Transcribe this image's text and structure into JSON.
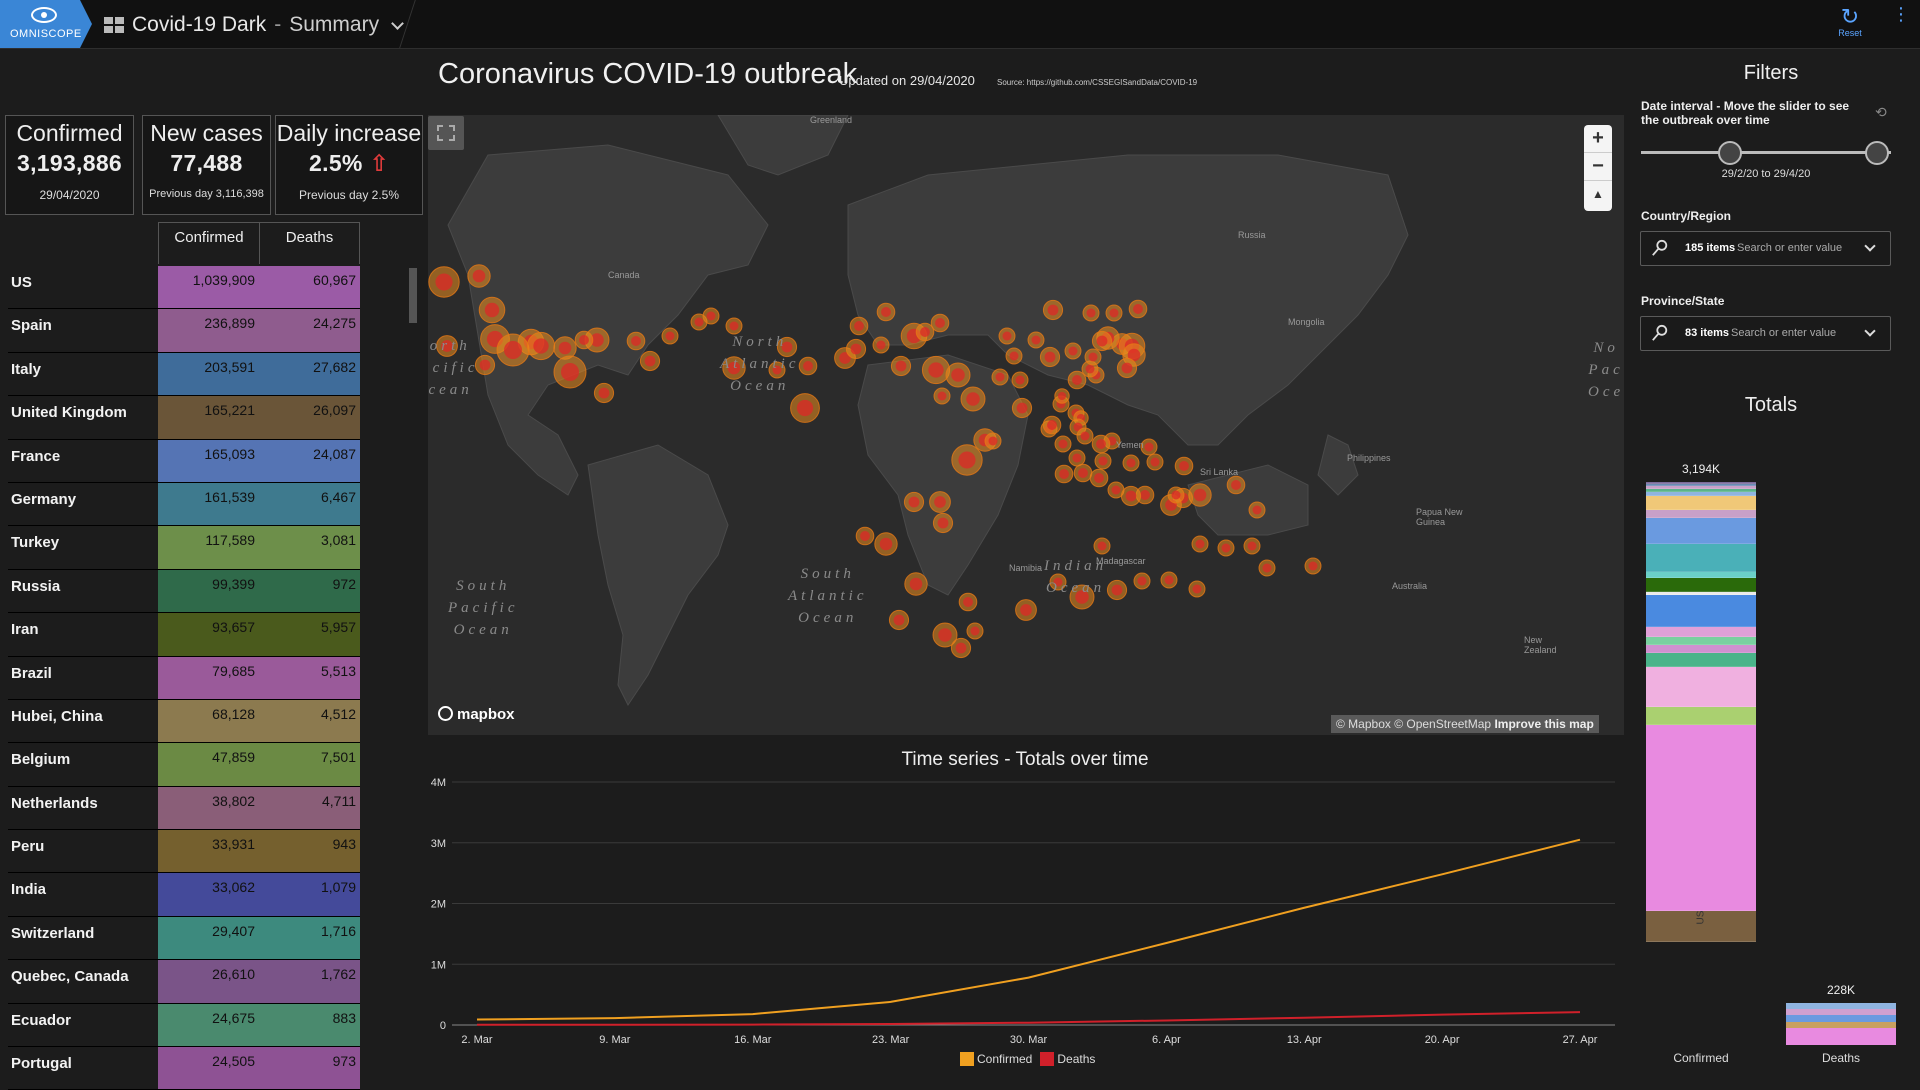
{
  "app": {
    "logo_text": "OMNISCOPE",
    "project": "Covid-19 Dark",
    "separator": "-",
    "page": "Summary",
    "reset_label": "Reset"
  },
  "dashboard": {
    "title": "Coronavirus COVID-19 outbreak",
    "updated": "Updated on 29/04/2020",
    "source": "Source: https://github.com/CSSEGISandData/COVID-19"
  },
  "kpis": {
    "confirmed": {
      "title": "Confirmed",
      "value": "3,193,886",
      "sub": "29/04/2020"
    },
    "new_cases": {
      "title": "New cases",
      "value": "77,488",
      "sub": "Previous day 3,116,398"
    },
    "daily_increase": {
      "title": "Daily increase",
      "value": "2.5%",
      "arrow": "⇧",
      "sub": "Previous day 2.5%"
    }
  },
  "table": {
    "headers": {
      "confirmed": "Confirmed",
      "deaths": "Deaths"
    },
    "rows": [
      {
        "country": "US",
        "confirmed": "1,039,909",
        "deaths": "60,967",
        "color": "#9b5ba6"
      },
      {
        "country": "Spain",
        "confirmed": "236,899",
        "deaths": "24,275",
        "color": "#8f5c8e"
      },
      {
        "country": "Italy",
        "confirmed": "203,591",
        "deaths": "27,682",
        "color": "#3f6c9a"
      },
      {
        "country": "United Kingdom",
        "confirmed": "165,221",
        "deaths": "26,097",
        "color": "#6a5538"
      },
      {
        "country": "France",
        "confirmed": "165,093",
        "deaths": "24,087",
        "color": "#5574b4"
      },
      {
        "country": "Germany",
        "confirmed": "161,539",
        "deaths": "6,467",
        "color": "#3e7a8e"
      },
      {
        "country": "Turkey",
        "confirmed": "117,589",
        "deaths": "3,081",
        "color": "#6d8f4a"
      },
      {
        "country": "Russia",
        "confirmed": "99,399",
        "deaths": "972",
        "color": "#2f6a4a"
      },
      {
        "country": "Iran",
        "confirmed": "93,657",
        "deaths": "5,957",
        "color": "#4a5a1c"
      },
      {
        "country": "Brazil",
        "confirmed": "79,685",
        "deaths": "5,513",
        "color": "#9a5a9a"
      },
      {
        "country": "Hubei, China",
        "confirmed": "68,128",
        "deaths": "4,512",
        "color": "#8c7a4f"
      },
      {
        "country": "Belgium",
        "confirmed": "47,859",
        "deaths": "7,501",
        "color": "#6b8a44"
      },
      {
        "country": "Netherlands",
        "confirmed": "38,802",
        "deaths": "4,711",
        "color": "#8a5e78"
      },
      {
        "country": "Peru",
        "confirmed": "33,931",
        "deaths": "943",
        "color": "#75602e"
      },
      {
        "country": "India",
        "confirmed": "33,062",
        "deaths": "1,079",
        "color": "#444a9a"
      },
      {
        "country": "Switzerland",
        "confirmed": "29,407",
        "deaths": "1,716",
        "color": "#3d8a7e"
      },
      {
        "country": "Quebec, Canada",
        "confirmed": "26,610",
        "deaths": "1,762",
        "color": "#7a5488"
      },
      {
        "country": "Ecuador",
        "confirmed": "24,675",
        "deaths": "883",
        "color": "#4a8a6e"
      },
      {
        "country": "Portugal",
        "confirmed": "24,505",
        "deaths": "973",
        "color": "#8e5294"
      }
    ]
  },
  "map": {
    "oceans": {
      "north_pacific": "North\nPacific\nOcean",
      "north_atlantic": "North\nAtlantic\nOcean",
      "south_pacific": "South\nPacific\nOcean",
      "south_atlantic": "South\nAtlantic\nOcean",
      "indian": "Indian\nOcean",
      "north_pacific_right": "No\nPac\nOce"
    },
    "places": [
      "Greenland",
      "Canada",
      "Russia",
      "Mongolia",
      "Australia",
      "Papua New Guinea",
      "New Zealand",
      "Sri Lanka",
      "Yemen",
      "Namibia",
      "Madagascar",
      "Philippines"
    ],
    "zoom_in": "+",
    "zoom_out": "−",
    "reset_north": "▲",
    "mapbox_text": "mapbox",
    "attribution": "© Mapbox © OpenStreetMap",
    "improve": "Improve this map"
  },
  "chart_data": {
    "type": "line",
    "title": "Time series - Totals over time",
    "x": [
      "2. Mar",
      "9. Mar",
      "16. Mar",
      "23. Mar",
      "30. Mar",
      "6. Apr",
      "13. Apr",
      "20. Apr",
      "27. Apr"
    ],
    "series": [
      {
        "name": "Confirmed",
        "color": "#f0a020",
        "values": [
          90000,
          114000,
          180000,
          380000,
          780000,
          1350000,
          1930000,
          2480000,
          3050000
        ]
      },
      {
        "name": "Deaths",
        "color": "#d0202a",
        "values": [
          3100,
          4000,
          7100,
          16500,
          38000,
          75000,
          120000,
          170000,
          212000
        ]
      }
    ],
    "yticks": [
      "0",
      "1M",
      "2M",
      "3M",
      "4M"
    ],
    "ylim": [
      0,
      4000000
    ]
  },
  "filters": {
    "title": "Filters",
    "date_label": "Date interval - Move the slider to see the outbreak over time",
    "date_range": "29/2/20 to 29/4/20",
    "country_label": "Country/Region",
    "country_count": "185 items",
    "country_placeholder": "Search or enter value",
    "province_label": "Province/State",
    "province_count": "83 items",
    "province_placeholder": "Search or enter value"
  },
  "totals": {
    "title": "Totals",
    "confirmed_total": "3,194K",
    "deaths_total": "228K",
    "confirmed_label": "Confirmed",
    "deaths_label": "Deaths",
    "us_label": "US"
  }
}
